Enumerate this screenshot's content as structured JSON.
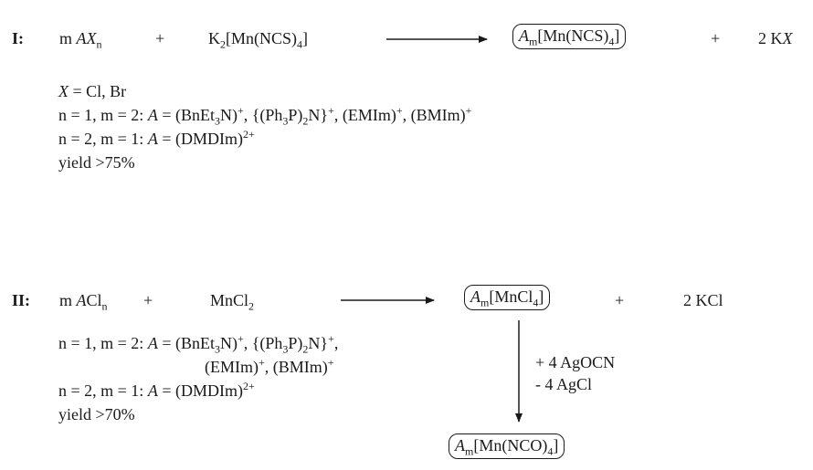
{
  "scheme_I": {
    "label": "I:",
    "reactant1": {
      "coef": "m ",
      "cation": "A",
      "anion": "X",
      "sub": "n"
    },
    "plus1": "+",
    "reactant2": {
      "a": "K",
      "a_sub": "2",
      "b": "[Mn(NCS)",
      "b_sub": "4",
      "c": "]"
    },
    "product_box": {
      "cation": "A",
      "cation_sub": "m",
      "b": "[Mn(NCS)",
      "b_sub": "4",
      "c": "]"
    },
    "plus2": "+",
    "byproduct": {
      "a": "2 K",
      "b": "X"
    },
    "notes": {
      "line1": {
        "var": "X",
        "text": " = Cl, Br"
      },
      "line2": {
        "a": "n = 1, m = 2: ",
        "var": "A",
        "b": " = (BnEt",
        "b_sub": "3",
        "c": "N)",
        "c_sup": "+",
        "d": ", {(Ph",
        "d_sub": "3",
        "e": "P)",
        "e_sub": "2",
        "f": "N}",
        "f_sup": "+",
        "g": ", (EMIm)",
        "g_sup": "+",
        "h": ", (BMIm)",
        "h_sup": "+"
      },
      "line3": {
        "a": "n = 2, m = 1: ",
        "var": "A",
        "b": " = (DMDIm)",
        "b_sup": "2+"
      },
      "line4": "yield >75%"
    }
  },
  "scheme_II": {
    "label": "II:",
    "reactant1": {
      "coef": "m ",
      "cation": "A",
      "anion": "Cl",
      "sub": "n"
    },
    "plus1": "+",
    "reactant2": {
      "a": "MnCl",
      "a_sub": "2"
    },
    "product_box": {
      "cation": "A",
      "cation_sub": "m",
      "b": "[MnCl",
      "b_sub": "4",
      "c": "]"
    },
    "plus2": "+",
    "byproduct": "2 KCl",
    "notes": {
      "line1": {
        "a": "n = 1, m = 2: ",
        "var": "A",
        "b": " = (BnEt",
        "b_sub": "3",
        "c": "N)",
        "c_sup": "+",
        "d": ", {(Ph",
        "d_sub": "3",
        "e": "P)",
        "e_sub": "2",
        "f": "N}",
        "f_sup": "+",
        "g": ","
      },
      "line1b": {
        "a": "(EMIm)",
        "a_sup": "+",
        "b": ", (BMIm)",
        "b_sup": "+"
      },
      "line2": {
        "a": "n = 2, m = 1: ",
        "var": "A",
        "b": " = (DMDIm)",
        "b_sup": "2+"
      },
      "line3": "yield >70%"
    },
    "conditions": {
      "add": "+ 4 AgOCN",
      "remove": "- 4 AgCl"
    },
    "final_box": {
      "cation": "A",
      "cation_sub": "m",
      "b": "[Mn(NCO)",
      "b_sub": "4",
      "c": "]"
    }
  }
}
